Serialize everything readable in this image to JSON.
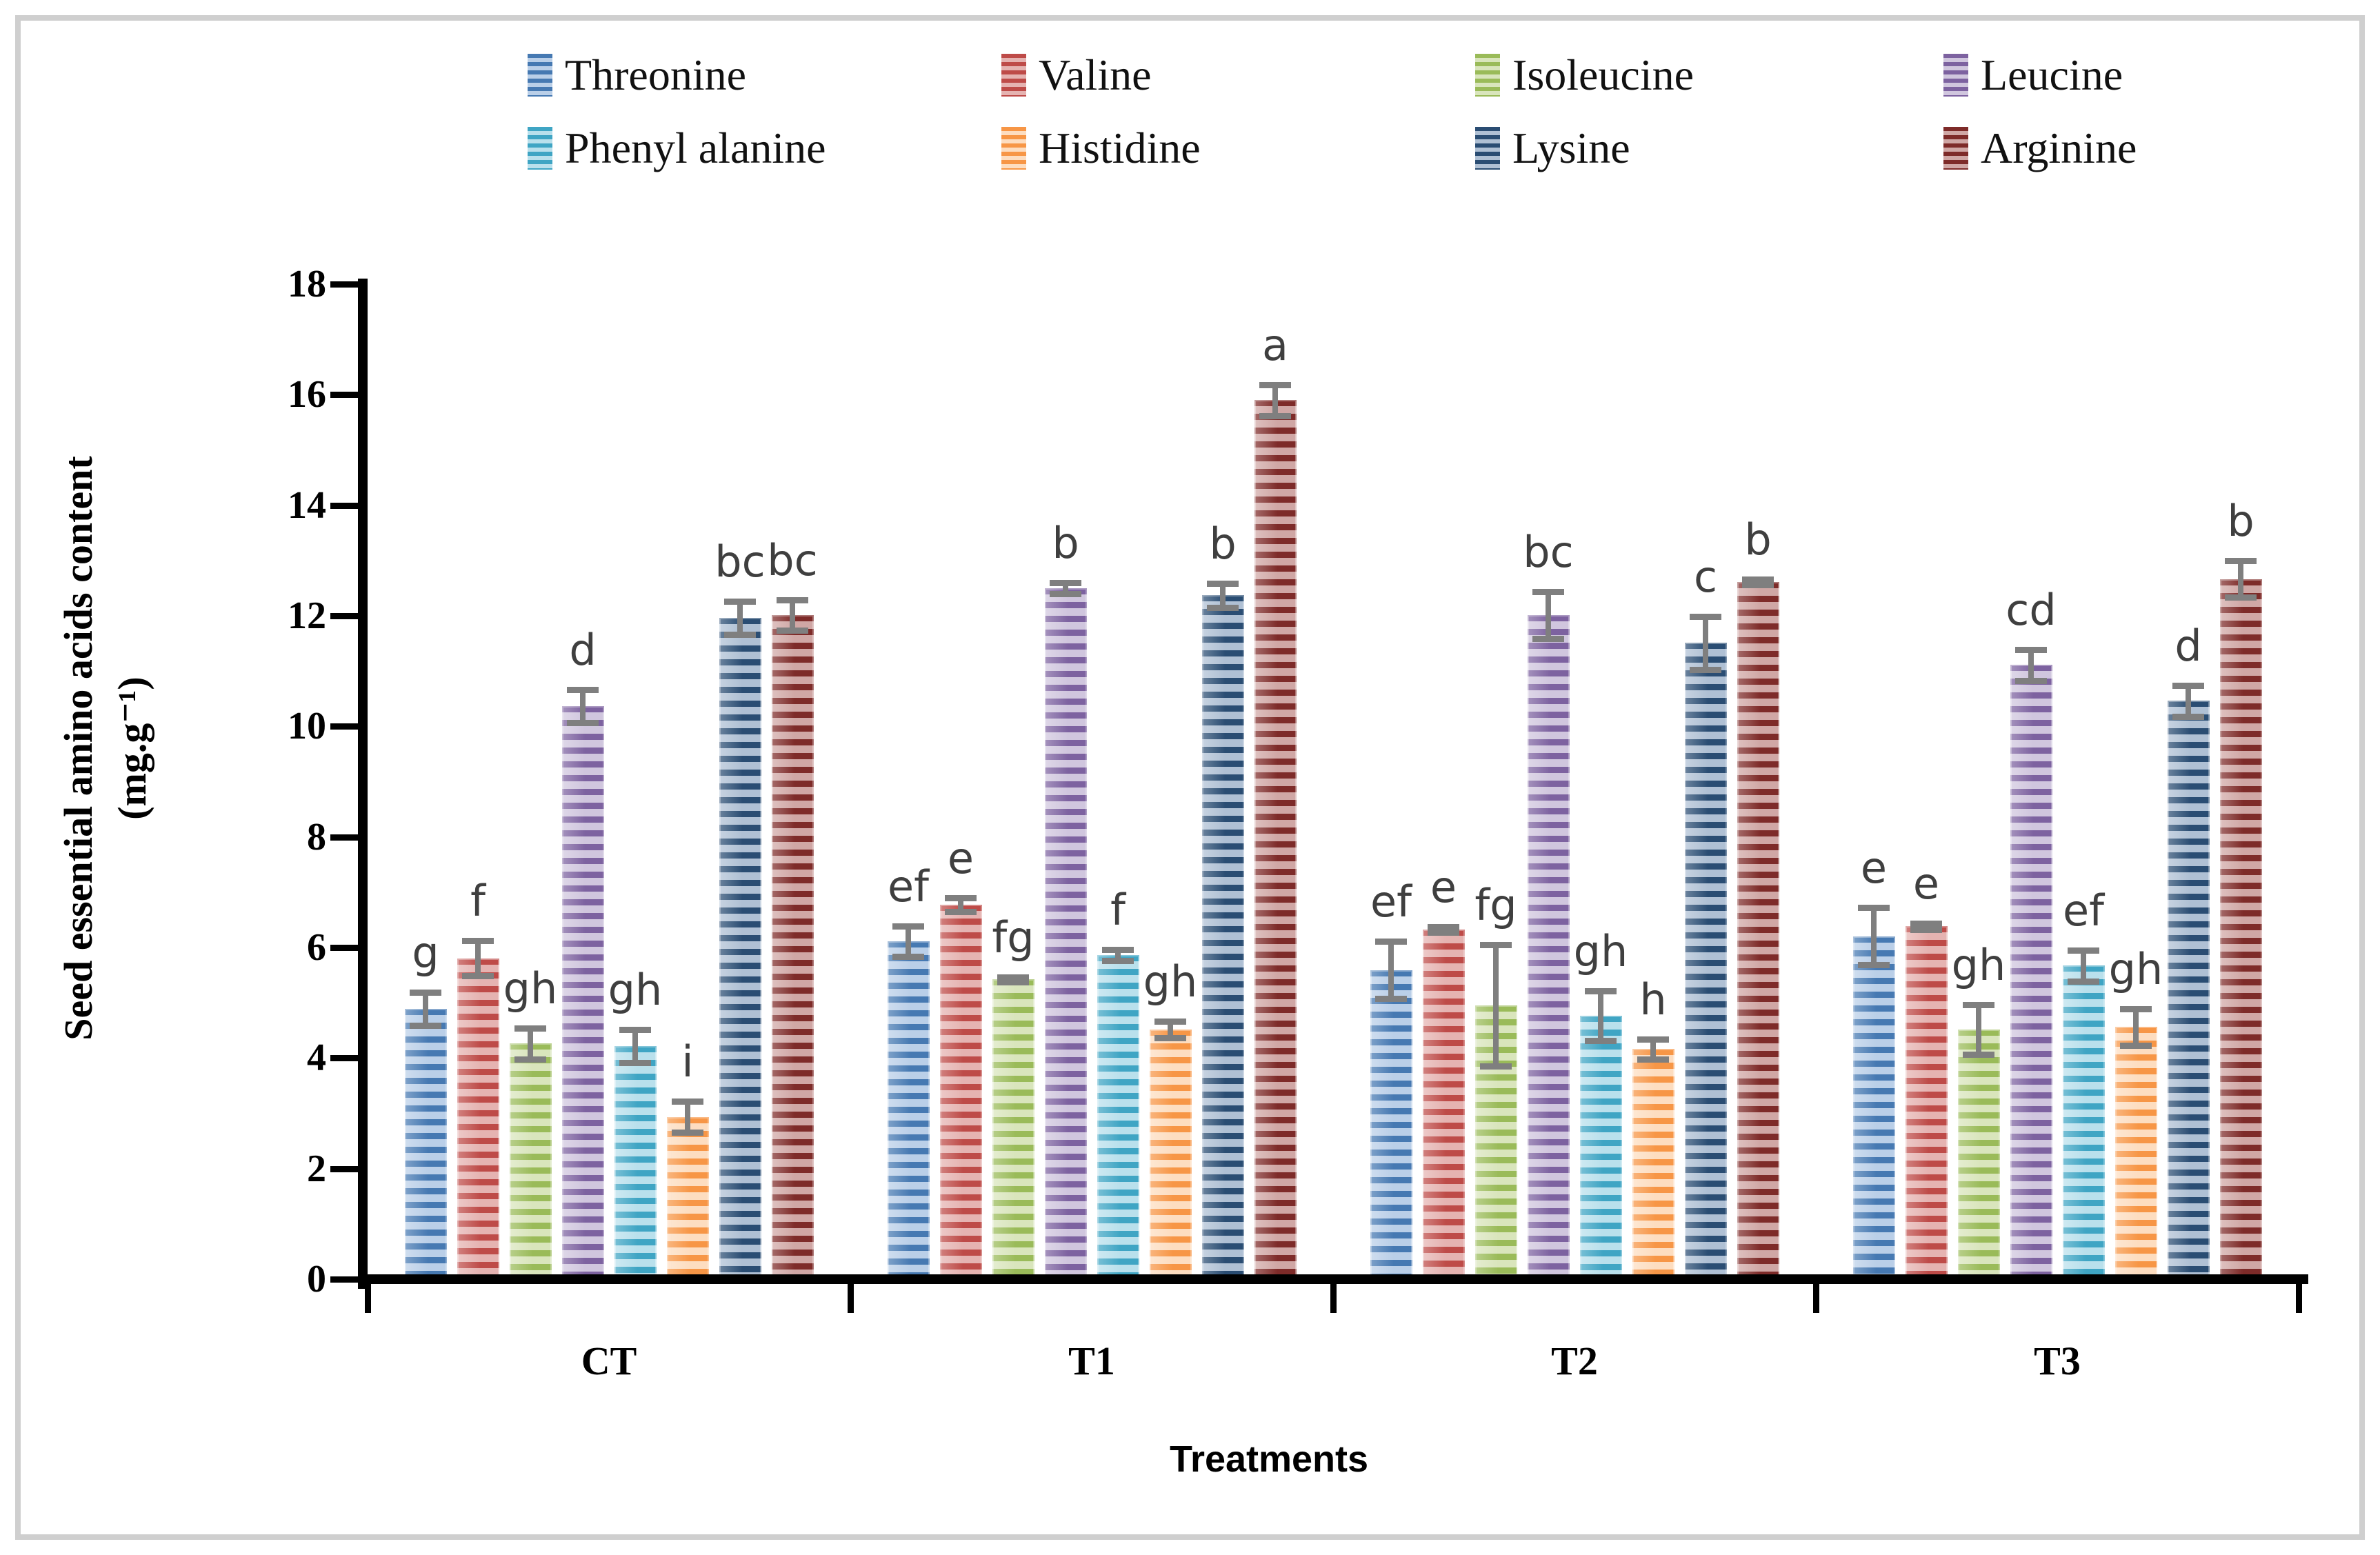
{
  "figure": {
    "border_color": "#cfcfcf",
    "background": "#ffffff",
    "error_bar_color": "#7f7f7f",
    "letter_color": "#3f3f3f"
  },
  "chart_data": {
    "type": "bar",
    "title": "",
    "xlabel": "Treatments",
    "ylabel_line1": "Seed essential amino acids content",
    "ylabel_line2": "(mg.g⁻¹)",
    "ylim": [
      0,
      18
    ],
    "yticks": [
      0,
      2,
      4,
      6,
      8,
      10,
      12,
      14,
      16,
      18
    ],
    "grid": false,
    "legend_position": "top",
    "categories": [
      "CT",
      "T1",
      "T2",
      "T3"
    ],
    "series": [
      {
        "name": "Threonine",
        "color_dark": "#4679B2",
        "color_light": "#BACFE8",
        "values": [
          4.83,
          6.05,
          5.53,
          6.14
        ],
        "errors": [
          0.3,
          0.28,
          0.52,
          0.52
        ],
        "letters": [
          "g",
          "ef",
          "ef",
          "e"
        ]
      },
      {
        "name": "Valine",
        "color_dark": "#BE4B48",
        "color_light": "#E5B3B1",
        "values": [
          5.74,
          6.71,
          6.26,
          6.32
        ],
        "errors": [
          0.32,
          0.12,
          0.05,
          0.06
        ],
        "letters": [
          "f",
          "e",
          "e",
          "e"
        ]
      },
      {
        "name": "Isoleucine",
        "color_dark": "#9ABB59",
        "color_light": "#D9E5BC",
        "values": [
          4.2,
          5.36,
          4.89,
          4.45
        ],
        "errors": [
          0.28,
          0.04,
          1.1,
          0.45
        ],
        "letters": [
          "gh",
          "fg",
          "fg",
          "gh"
        ]
      },
      {
        "name": "Leucine",
        "color_dark": "#7D62A0",
        "color_light": "#D0C6DE",
        "values": [
          10.3,
          12.44,
          11.95,
          11.05
        ],
        "errors": [
          0.3,
          0.1,
          0.42,
          0.28
        ],
        "letters": [
          "d",
          "b",
          "bc",
          "cd"
        ]
      },
      {
        "name": "Phenyl alanine",
        "color_dark": "#3FA5C4",
        "color_light": "#B9E0EC",
        "values": [
          4.15,
          5.8,
          4.7,
          5.61
        ],
        "errors": [
          0.3,
          0.1,
          0.45,
          0.28
        ],
        "letters": [
          "gh",
          "f",
          "gh",
          "ef"
        ]
      },
      {
        "name": "Histidine",
        "color_dark": "#F79646",
        "color_light": "#FDDDC0",
        "values": [
          2.87,
          4.45,
          4.1,
          4.5
        ],
        "errors": [
          0.28,
          0.15,
          0.18,
          0.33
        ],
        "letters": [
          "i",
          "gh",
          "h",
          "gh"
        ]
      },
      {
        "name": "Lysine",
        "color_dark": "#2A4D73",
        "color_light": "#AFC0D4",
        "values": [
          11.9,
          12.31,
          11.45,
          10.4
        ],
        "errors": [
          0.3,
          0.22,
          0.48,
          0.28
        ],
        "letters": [
          "bc",
          "b",
          "c",
          "d"
        ]
      },
      {
        "name": "Arginine",
        "color_dark": "#7E2B29",
        "color_light": "#D0A7A5",
        "values": [
          11.95,
          15.84,
          12.55,
          12.6
        ],
        "errors": [
          0.28,
          0.28,
          0.05,
          0.33
        ],
        "letters": [
          "bc",
          "a",
          "b",
          "b"
        ]
      }
    ],
    "legend_columns_x": [
      765,
      1452,
      2139,
      2818
    ],
    "legend_rows_y": [
      74,
      180
    ]
  }
}
